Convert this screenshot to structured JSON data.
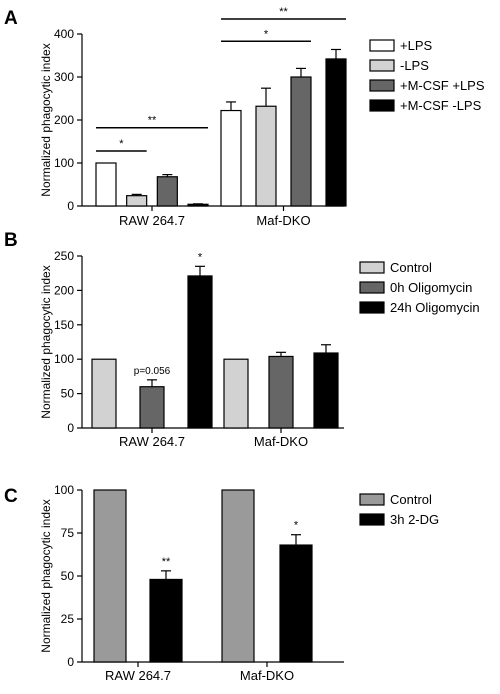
{
  "colors": {
    "white": "#ffffff",
    "light_gray": "#d2d2d2",
    "mid_gray": "#9a9a9a",
    "dark_gray": "#666666",
    "black": "#000000"
  },
  "chart_data": [
    {
      "panel": "A",
      "type": "bar",
      "ylabel": "Normalized phagocytic index",
      "ylim": [
        0,
        400
      ],
      "yticks": [
        0,
        100,
        200,
        300,
        400
      ],
      "categories": [
        "RAW 264.7",
        "Maf-DKO"
      ],
      "series": [
        {
          "name": "+LPS",
          "color": "#ffffff",
          "values": [
            100,
            222
          ],
          "errors": [
            0,
            20
          ]
        },
        {
          "name": "-LPS",
          "color": "#d2d2d2",
          "values": [
            24,
            232
          ],
          "errors": [
            3,
            42
          ]
        },
        {
          "name": "+M-CSF +LPS",
          "color": "#666666",
          "values": [
            68,
            300
          ],
          "errors": [
            5,
            20
          ]
        },
        {
          "name": "+M-CSF -LPS",
          "color": "#000000",
          "values": [
            4,
            342
          ],
          "errors": [
            1,
            22
          ]
        }
      ],
      "annotations": [
        {
          "text": "*",
          "category": 0,
          "from_series": 0,
          "to_series": 1,
          "y": 128
        },
        {
          "text": "**",
          "category": 0,
          "from_series": 0,
          "to_series": 3,
          "y": 182
        },
        {
          "text": "*",
          "category": 1,
          "from_series": 0,
          "to_series": 2,
          "y": 383
        },
        {
          "text": "**",
          "category": 1,
          "from_series": 0,
          "to_series": 3,
          "y": 435
        }
      ]
    },
    {
      "panel": "B",
      "type": "bar",
      "ylabel": "Normalized phagocytic index",
      "ylim": [
        0,
        250
      ],
      "yticks": [
        0,
        50,
        100,
        150,
        200,
        250
      ],
      "categories": [
        "RAW 264.7",
        "Maf-DKO"
      ],
      "series": [
        {
          "name": "Control",
          "color": "#d2d2d2",
          "values": [
            100,
            100
          ],
          "errors": [
            0,
            0
          ]
        },
        {
          "name": "0h Oligomycin",
          "color": "#666666",
          "values": [
            60,
            104
          ],
          "errors": [
            10,
            6
          ]
        },
        {
          "name": "24h Oligomycin",
          "color": "#000000",
          "values": [
            221,
            109
          ],
          "errors": [
            14,
            12
          ]
        }
      ],
      "annotations": [
        {
          "text": "p=0.056",
          "category": 0,
          "series": 1
        },
        {
          "text": "*",
          "category": 0,
          "series": 2
        }
      ]
    },
    {
      "panel": "C",
      "type": "bar",
      "ylabel": "Normalized phagocytic index",
      "ylim": [
        0,
        100
      ],
      "yticks": [
        0,
        25,
        50,
        75,
        100
      ],
      "categories": [
        "RAW 264.7",
        "Maf-DKO"
      ],
      "series": [
        {
          "name": "Control",
          "color": "#9a9a9a",
          "values": [
            100,
            100
          ],
          "errors": [
            0,
            0
          ]
        },
        {
          "name": "3h 2-DG",
          "color": "#000000",
          "values": [
            48,
            68
          ],
          "errors": [
            5,
            6
          ]
        }
      ],
      "annotations": [
        {
          "text": "**",
          "category": 0,
          "series": 1
        },
        {
          "text": "*",
          "category": 1,
          "series": 1
        }
      ]
    }
  ]
}
